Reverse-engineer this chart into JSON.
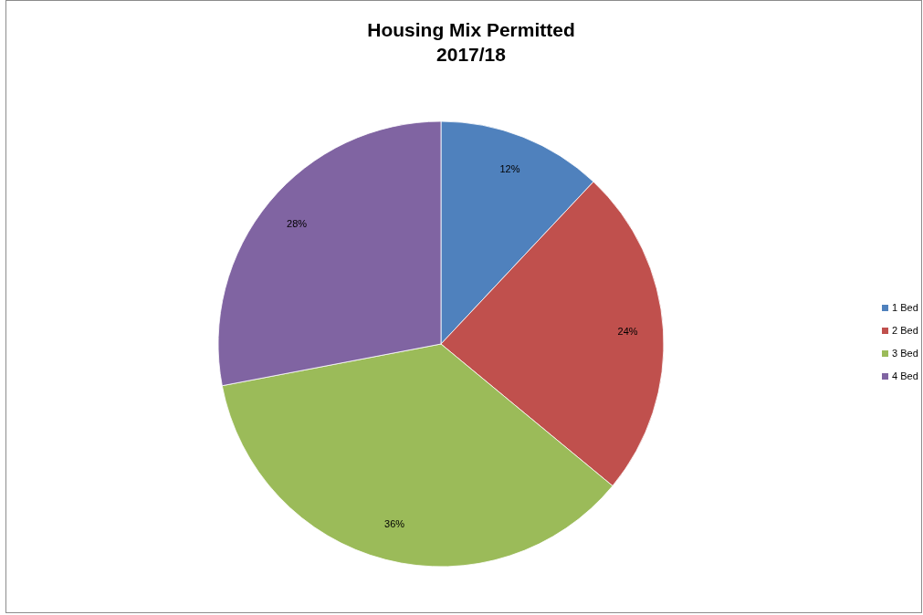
{
  "chart_data": {
    "type": "pie",
    "title": "Housing Mix Permitted\n2017/18",
    "categories": [
      "1 Bed",
      "2 Bed",
      "3 Bed",
      "4 Bed"
    ],
    "values": [
      12,
      24,
      36,
      28
    ],
    "colors": [
      "#4f81bd",
      "#c0504d",
      "#9bbb59",
      "#8064a2"
    ],
    "value_labels": [
      "12%",
      "24%",
      "36%",
      "28%"
    ],
    "legend": "right"
  }
}
